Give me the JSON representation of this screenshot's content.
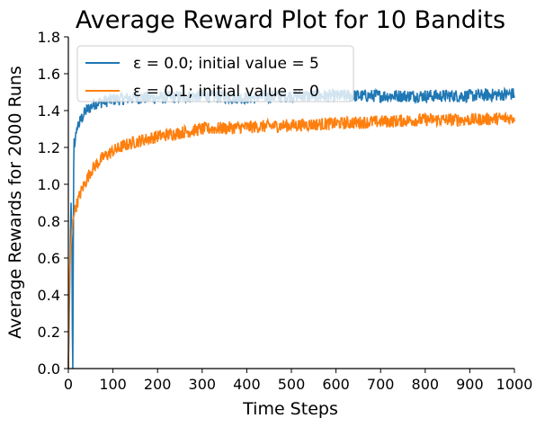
{
  "chart_data": {
    "type": "line",
    "title": "Average Reward Plot for 10 Bandits",
    "xlabel": "Time Steps",
    "ylabel": "Average Rewards for 2000 Runs",
    "xlim": [
      0,
      1000
    ],
    "ylim": [
      0,
      1.8
    ],
    "xticks": [
      "0",
      "100",
      "200",
      "300",
      "400",
      "500",
      "600",
      "700",
      "800",
      "900",
      "1000"
    ],
    "yticks": [
      "0.0",
      "0.2",
      "0.4",
      "0.6",
      "0.8",
      "1.0",
      "1.2",
      "1.4",
      "1.6",
      "1.8"
    ],
    "grid": false,
    "legend_position": "top-left",
    "series": [
      {
        "name": "ε = 0.0; initial value = 5",
        "color": "#1f77b4",
        "x": [
          0,
          2,
          4,
          6,
          8,
          9,
          10,
          11,
          12,
          13,
          14,
          16,
          18,
          20,
          25,
          30,
          40,
          50,
          60,
          80,
          100,
          150,
          200,
          300,
          400,
          500,
          600,
          700,
          800,
          900,
          1000
        ],
        "y": [
          0.0,
          0.3,
          0.6,
          0.9,
          0.7,
          0.2,
          0.0,
          0.6,
          1.1,
          1.25,
          1.2,
          1.28,
          1.25,
          1.32,
          1.33,
          1.36,
          1.4,
          1.42,
          1.44,
          1.45,
          1.46,
          1.47,
          1.47,
          1.48,
          1.47,
          1.48,
          1.48,
          1.48,
          1.48,
          1.48,
          1.49
        ]
      },
      {
        "name": "ε = 0.1; initial value = 0",
        "color": "#ff7f0e",
        "x": [
          0,
          2,
          4,
          6,
          8,
          10,
          15,
          20,
          30,
          40,
          50,
          60,
          80,
          100,
          125,
          150,
          200,
          250,
          300,
          400,
          500,
          600,
          700,
          800,
          900,
          1000
        ],
        "y": [
          0.0,
          0.45,
          0.6,
          0.68,
          0.75,
          0.8,
          0.86,
          0.9,
          0.97,
          1.02,
          1.07,
          1.1,
          1.15,
          1.18,
          1.21,
          1.23,
          1.26,
          1.28,
          1.3,
          1.31,
          1.32,
          1.33,
          1.34,
          1.35,
          1.35,
          1.36
        ]
      }
    ]
  }
}
